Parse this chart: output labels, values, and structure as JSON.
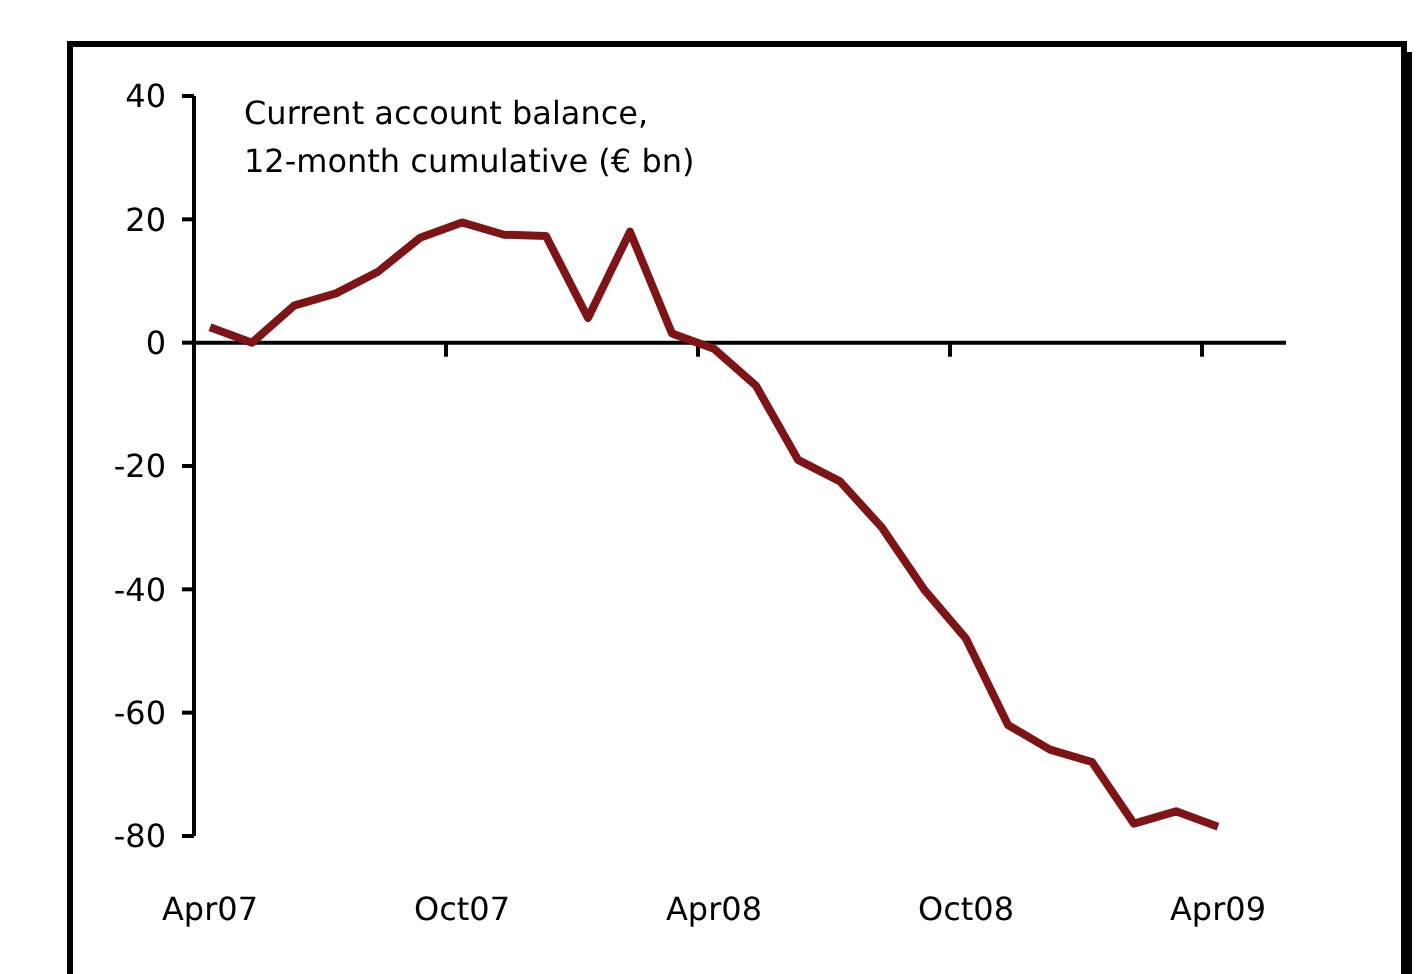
{
  "chart_data": {
    "type": "line",
    "annotations": [
      "Current account balance,\n12-month cumulative (€ bn)"
    ],
    "categories": [
      "Apr07",
      null,
      null,
      null,
      null,
      null,
      "Oct07",
      null,
      null,
      null,
      null,
      null,
      "Apr08",
      null,
      null,
      null,
      null,
      null,
      "Oct08",
      null,
      null,
      null,
      null,
      null,
      "Apr09"
    ],
    "series": [
      {
        "color": "#7f1416",
        "values": [
          2.5,
          0,
          6,
          8,
          11.5,
          17,
          19.5,
          17.5,
          17.3,
          4,
          18,
          1.5,
          -1,
          -7,
          -19,
          -22.5,
          -30,
          -40,
          -48,
          -62,
          -66,
          -68,
          -78,
          -76,
          -78.5
        ]
      }
    ],
    "ylim": [
      -80,
      40
    ],
    "yticks": [
      -80,
      -60,
      -40,
      -20,
      0,
      20,
      40
    ],
    "marker": "none",
    "line_style": "solid"
  }
}
